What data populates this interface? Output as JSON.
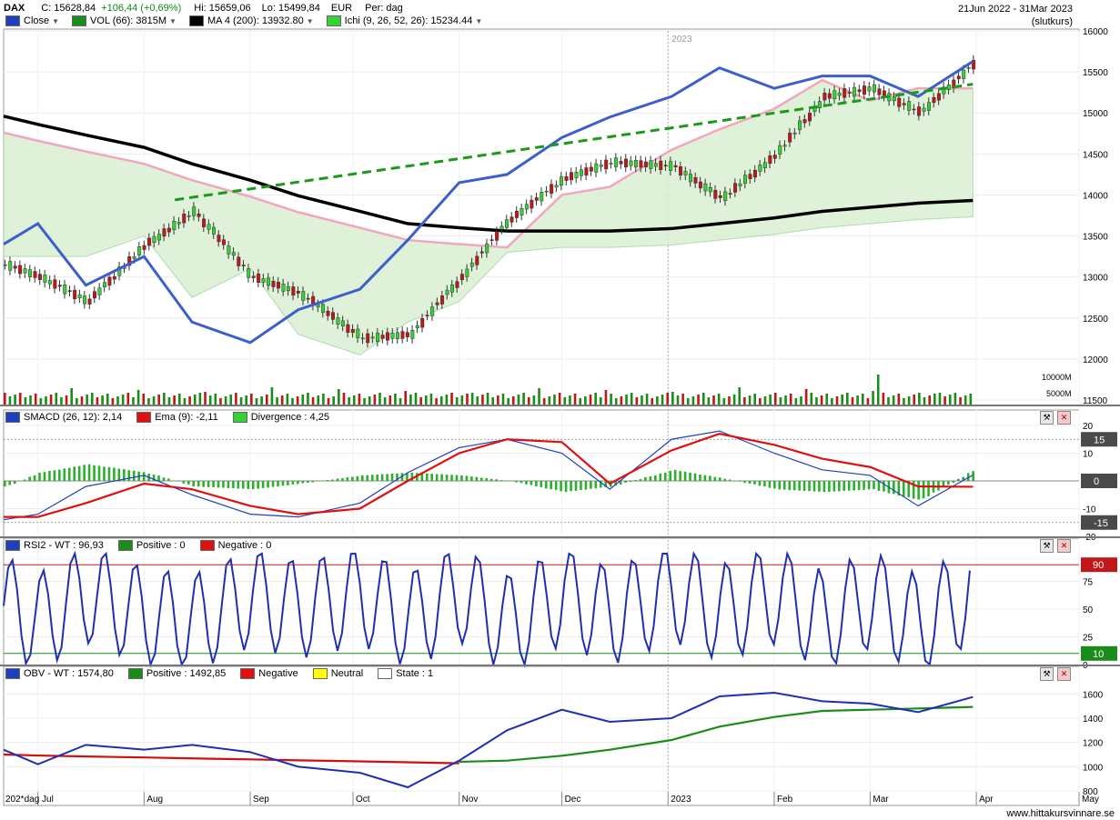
{
  "header": {
    "symbol": "DAX",
    "close_text": "C: 15628,84",
    "change_text": "+106,44 (+0,69%)",
    "hi_text": "Hi: 15659,06",
    "lo_text": "Lo: 15499,84",
    "currency": "EUR",
    "period": "Per: dag",
    "date_range": "21Jun 2022 - 31Mar 2023",
    "price_type": "(slutkurs)"
  },
  "legend": [
    {
      "label": "Close",
      "color": "#1f3fbf"
    },
    {
      "label": "VOL (66): 3815M",
      "color": "#1a8c1a"
    },
    {
      "label": "MA 4 (200): 13932.80",
      "color": "#000000"
    },
    {
      "label": "Ichi (9, 26, 52, 26): 15234.44",
      "color": "#35d235"
    }
  ],
  "panels": {
    "macd": {
      "legend": [
        {
          "label": "SMACD (26, 12): 2,14",
          "color": "#1f3fbf"
        },
        {
          "label": "Ema (9): -2,11",
          "color": "#e01010"
        },
        {
          "label": "Divergence : 4,25",
          "color": "#35d235"
        }
      ]
    },
    "rsi": {
      "legend": [
        {
          "label": "RSI2 - WT : 96,93",
          "color": "#1f3fbf"
        },
        {
          "label": "Positive : 0",
          "color": "#1a8c1a"
        },
        {
          "label": "Negative : 0",
          "color": "#e01010"
        }
      ]
    },
    "obv": {
      "legend": [
        {
          "label": "OBV - WT : 1574,80",
          "color": "#1f3fbf"
        },
        {
          "label": "Positive : 1492,85",
          "color": "#1a8c1a"
        },
        {
          "label": "Negative",
          "color": "#e01010"
        },
        {
          "label": "Neutral",
          "color": "#ffff00"
        },
        {
          "label": "State : 1",
          "color": "#ffffff"
        }
      ]
    }
  },
  "footer": {
    "source": "www.hittakursvinnare.se"
  },
  "chart_data": [
    {
      "type": "line",
      "panel": "price",
      "title": "DAX",
      "x": [
        "2022-06-21",
        "2022-07-01",
        "2022-07-15",
        "2022-08-01",
        "2022-08-15",
        "2022-09-01",
        "2022-09-15",
        "2022-10-03",
        "2022-10-17",
        "2022-11-01",
        "2022-11-15",
        "2022-12-01",
        "2022-12-15",
        "2023-01-02",
        "2023-01-16",
        "2023-02-01",
        "2023-02-15",
        "2023-03-01",
        "2023-03-15",
        "2023-03-31"
      ],
      "series": [
        {
          "name": "Close",
          "values": [
            13400,
            13650,
            12900,
            13250,
            12450,
            12200,
            12600,
            12850,
            13450,
            14150,
            14250,
            14700,
            14950,
            15200,
            15550,
            15300,
            15450,
            15450,
            15200,
            15628
          ]
        },
        {
          "name": "MA 4 (200)",
          "values": [
            14960,
            14860,
            14730,
            14580,
            14380,
            14180,
            13990,
            13800,
            13650,
            13600,
            13560,
            13560,
            13560,
            13590,
            13650,
            13720,
            13800,
            13850,
            13900,
            13932.8
          ]
        }
      ],
      "candle_close": [
        13150,
        13000,
        12700,
        13400,
        13800,
        13000,
        12800,
        12250,
        12300,
        13000,
        13700,
        14200,
        14400,
        14350,
        13950,
        14500,
        15200,
        15300,
        15000,
        15628
      ],
      "trendlines": [
        {
          "name": "resistance",
          "from": [
            "2022-08-10",
            13940
          ],
          "to": [
            "2023-03-31",
            15350
          ]
        }
      ],
      "ylim": [
        11500,
        16000
      ],
      "yticks": [
        11500,
        12000,
        12500,
        13000,
        13500,
        14000,
        14500,
        15000,
        15500,
        16000
      ],
      "volume_ticks": [
        "5000M",
        "10000M"
      ],
      "year_marker": "2023",
      "xticklabels": [
        "202*dag Jul",
        "Aug",
        "Sep",
        "Oct",
        "Nov",
        "Dec",
        "2023",
        "Feb",
        "Mar",
        "Apr",
        "May"
      ]
    },
    {
      "type": "line",
      "panel": "macd",
      "series": [
        {
          "name": "SMACD (26, 12)",
          "values": [
            -14,
            -12,
            -2,
            2,
            -5,
            -12,
            -13,
            -8,
            3,
            12,
            15,
            10,
            -3,
            15,
            18,
            10,
            4,
            2,
            -9,
            2.14
          ]
        },
        {
          "name": "Ema (9)",
          "values": [
            -13,
            -13,
            -8,
            -1,
            -3,
            -9,
            -12,
            -10,
            0,
            10,
            15,
            14,
            -1,
            11,
            17,
            13,
            8,
            5,
            -2,
            -2.11
          ]
        }
      ],
      "divergence": [
        -2,
        3,
        6,
        3,
        -2,
        -3,
        -1,
        2,
        3,
        2,
        0,
        -4,
        -2,
        4,
        1,
        -3,
        -4,
        -3,
        -7,
        4.25
      ],
      "ylim": [
        -20,
        20
      ],
      "yticks": [
        -20,
        -10,
        0,
        10,
        20
      ],
      "markers": [
        15,
        0,
        -15
      ]
    },
    {
      "type": "line",
      "panel": "rsi",
      "series": [
        {
          "name": "RSI2 - WT",
          "values": [
            60,
            15,
            95,
            30,
            10,
            85,
            50,
            90,
            20,
            96,
            5,
            92,
            30,
            100,
            40,
            95,
            15,
            80,
            5,
            96.93
          ]
        }
      ],
      "ylim": [
        0,
        100
      ],
      "yticks": [
        0,
        25,
        50,
        75
      ],
      "markers": [
        90,
        10
      ]
    },
    {
      "type": "line",
      "panel": "obv",
      "series": [
        {
          "name": "OBV - WT",
          "values": [
            1140,
            1020,
            1180,
            1140,
            1180,
            1120,
            1000,
            950,
            830,
            1050,
            1300,
            1470,
            1370,
            1400,
            1580,
            1610,
            1540,
            1520,
            1450,
            1574.8
          ]
        },
        {
          "name": "Positive",
          "values": [
            null,
            null,
            null,
            null,
            null,
            null,
            null,
            null,
            null,
            1040,
            1050,
            1090,
            1140,
            1220,
            1330,
            1410,
            1460,
            1470,
            1480,
            1492.85
          ]
        }
      ],
      "ylim": [
        800,
        1700
      ],
      "yticks": [
        800,
        1000,
        1200,
        1400,
        1600
      ]
    }
  ]
}
